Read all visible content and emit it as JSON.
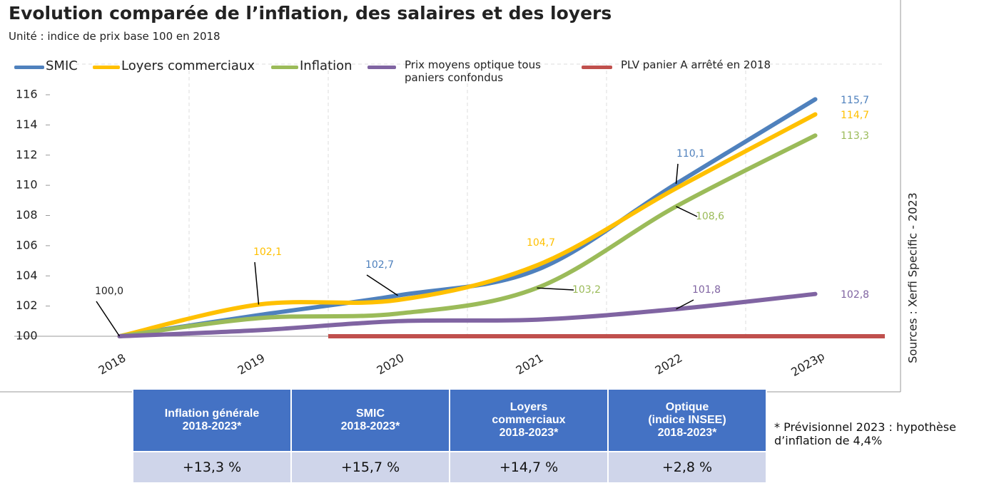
{
  "chart_data": {
    "type": "line",
    "title": "Evolution comparée de l’inflation, des salaires et des loyers",
    "subtitle": "Unité : indice de prix base 100 en 2018",
    "source": "Sources : Xerfi Specific - 2023",
    "categories": [
      "2018",
      "2019",
      "2020",
      "2021",
      "2022",
      "2023p"
    ],
    "series": [
      {
        "name": "SMIC",
        "color": "#4f81bd",
        "values": [
          100,
          101.4,
          102.7,
          104.4,
          110.1,
          115.7
        ],
        "value_labels": [
          "100,0",
          null,
          "102,7",
          null,
          "110,1",
          "115,7"
        ]
      },
      {
        "name": "Loyers commerciaux",
        "color": "#ffc000",
        "values": [
          100,
          102.1,
          102.4,
          104.7,
          109.8,
          114.7
        ],
        "value_labels": [
          null,
          "102,1",
          null,
          "104,7",
          null,
          "114,7"
        ]
      },
      {
        "name": "Inflation",
        "color": "#9bbb59",
        "values": [
          100,
          101.2,
          101.5,
          103.2,
          108.6,
          113.3
        ],
        "value_labels": [
          null,
          null,
          null,
          "103,2",
          "108,6",
          "113,3"
        ]
      },
      {
        "name": "Prix moyens optique tous paniers confondus",
        "color": "#8064a2",
        "values": [
          100,
          100.4,
          101.0,
          101.1,
          101.8,
          102.8
        ],
        "value_labels": [
          null,
          null,
          null,
          null,
          "101,8",
          "102,8"
        ]
      },
      {
        "name": "PLV panier A arrêté en 2018",
        "color": "#c0504d",
        "linestyle": "flat",
        "values": [
          null,
          null,
          100,
          100,
          100,
          100
        ]
      }
    ],
    "ylim": [
      100,
      116
    ],
    "yticks": [
      100,
      102,
      104,
      106,
      108,
      110,
      112,
      114,
      116
    ],
    "legend": "top"
  },
  "note": "* Prévisionnel 2023 : hypothèse d’inflation de 4,4%",
  "table": {
    "header": [
      "Inflation générale\n2018-2023*",
      "SMIC\n2018-2023*",
      "Loyers\ncommerciaux\n2018-2023*",
      "Optique\n(indice INSEE)\n2018-2023*"
    ],
    "rows": [
      [
        "+13,3 %",
        "+15,7 %",
        "+14,7 %",
        "+2,8 %"
      ]
    ]
  }
}
